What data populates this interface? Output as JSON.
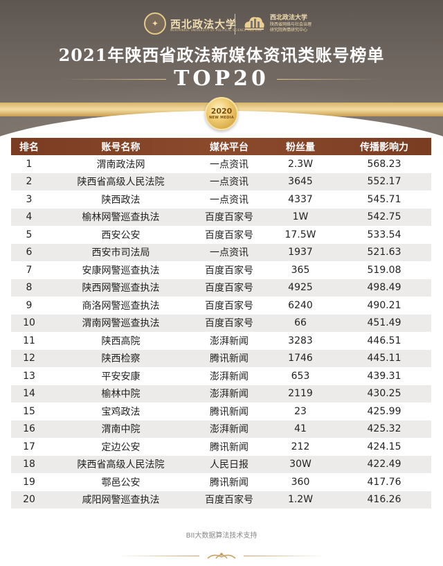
{
  "header": {
    "logo_left_name": "西北政法大学",
    "logo_left_sub": "NORTHWEST UNIVERSITY OF POLITICAL SCIENCE AND LAW",
    "logo_right_line1": "西北政法大学",
    "logo_right_line2": "陕西省网络与社会治理",
    "logo_right_line3": "研究院舆情研究中心",
    "title": "2021年陕西省政法新媒体资讯类账号榜单",
    "subtitle": "TOP20",
    "medal_year": "2020",
    "medal_text": "NEW MEDIA"
  },
  "table": {
    "headers": [
      "排名",
      "账号名称",
      "媒体平台",
      "粉丝量",
      "传播影响力"
    ],
    "rows": [
      {
        "rank": "1",
        "name": "渭南政法网",
        "platform": "一点资讯",
        "fans": "2.3W",
        "influence": "568.23"
      },
      {
        "rank": "2",
        "name": "陕西省高级人民法院",
        "platform": "一点资讯",
        "fans": "3645",
        "influence": "552.17"
      },
      {
        "rank": "3",
        "name": "陕西政法",
        "platform": "一点资讯",
        "fans": "4337",
        "influence": "545.71"
      },
      {
        "rank": "4",
        "name": "榆林网警巡查执法",
        "platform": "百度百家号",
        "fans": "1W",
        "influence": "542.75"
      },
      {
        "rank": "5",
        "name": "西安公安",
        "platform": "百度百家号",
        "fans": "17.5W",
        "influence": "533.54"
      },
      {
        "rank": "6",
        "name": "西安市司法局",
        "platform": "一点资讯",
        "fans": "1937",
        "influence": "521.63"
      },
      {
        "rank": "7",
        "name": "安康网警巡查执法",
        "platform": "百度百家号",
        "fans": "365",
        "influence": "519.08"
      },
      {
        "rank": "8",
        "name": "陕西网警巡查执法",
        "platform": "百度百家号",
        "fans": "4925",
        "influence": "498.49"
      },
      {
        "rank": "9",
        "name": "商洛网警巡查执法",
        "platform": "百度百家号",
        "fans": "6240",
        "influence": "490.21"
      },
      {
        "rank": "10",
        "name": "渭南网警巡查执法",
        "platform": "百度百家号",
        "fans": "66",
        "influence": "451.49"
      },
      {
        "rank": "11",
        "name": "陕西高院",
        "platform": "澎湃新闻",
        "fans": "3283",
        "influence": "446.51"
      },
      {
        "rank": "12",
        "name": "陕西检察",
        "platform": "腾讯新闻",
        "fans": "1746",
        "influence": "445.11"
      },
      {
        "rank": "13",
        "name": "平安安康",
        "platform": "澎湃新闻",
        "fans": "653",
        "influence": "439.31"
      },
      {
        "rank": "14",
        "name": "榆林中院",
        "platform": "澎湃新闻",
        "fans": "2119",
        "influence": "430.25"
      },
      {
        "rank": "15",
        "name": "宝鸡政法",
        "platform": "腾讯新闻",
        "fans": "23",
        "influence": "425.99"
      },
      {
        "rank": "16",
        "name": "渭南中院",
        "platform": "澎湃新闻",
        "fans": "41",
        "influence": "425.32"
      },
      {
        "rank": "17",
        "name": "定边公安",
        "platform": "腾讯新闻",
        "fans": "212",
        "influence": "424.15"
      },
      {
        "rank": "18",
        "name": "陕西省高级人民法院",
        "platform": "人民日报",
        "fans": "30W",
        "influence": "422.49"
      },
      {
        "rank": "19",
        "name": "鄠邑公安",
        "platform": "腾讯新闻",
        "fans": "360",
        "influence": "417.76"
      },
      {
        "rank": "20",
        "name": "咸阳网警巡查执法",
        "platform": "百度百家号",
        "fans": "1.2W",
        "influence": "416.26"
      }
    ]
  },
  "footer": {
    "text": "BII大数据算法技术支持"
  },
  "colors": {
    "header_bg": "#6f6660",
    "gold": "#e6c88c",
    "table_head": "#8c4a2c",
    "row_stripe": "#ecebea"
  }
}
